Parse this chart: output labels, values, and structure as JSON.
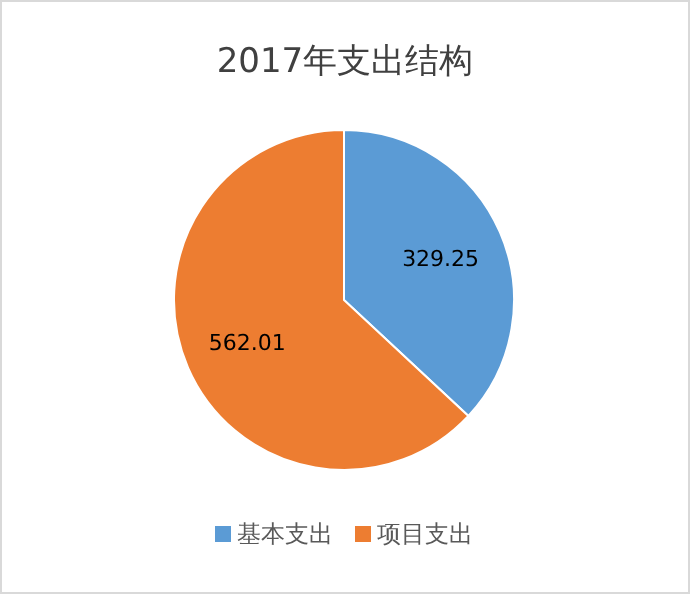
{
  "chart_data": {
    "type": "pie",
    "title": "2017年支出结构",
    "categories": [
      "基本支出",
      "项目支出"
    ],
    "values": [
      329.25,
      562.01
    ],
    "colors": [
      "#5b9bd5",
      "#ed7d31"
    ],
    "data_labels": true,
    "legend": "bottom"
  }
}
